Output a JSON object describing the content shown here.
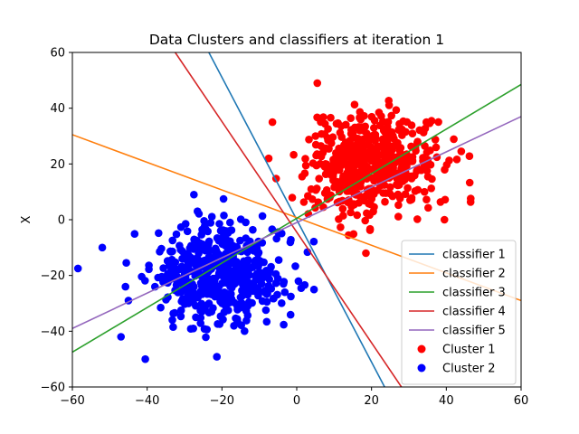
{
  "chart_data": {
    "type": "scatter",
    "title": "Data Clusters and classifiers at iteration 1",
    "xlabel": "",
    "ylabel": "X",
    "xlim": [
      -60,
      60
    ],
    "ylim": [
      -60,
      60
    ],
    "xticks": [
      -60,
      -40,
      -20,
      0,
      20,
      40,
      60
    ],
    "yticks": [
      -60,
      -40,
      -20,
      0,
      20,
      40,
      60
    ],
    "grid": false,
    "legend_position": "lower-right",
    "lines": [
      {
        "name": "classifier 1",
        "color": "#1f77b4",
        "points": [
          [
            -23.5,
            60
          ],
          [
            23.5,
            -60
          ]
        ]
      },
      {
        "name": "classifier 2",
        "color": "#ff7f0e",
        "points": [
          [
            -60,
            30.5
          ],
          [
            60,
            -29
          ]
        ]
      },
      {
        "name": "classifier 3",
        "color": "#2ca02c",
        "points": [
          [
            -60,
            -47.5
          ],
          [
            60,
            48.5
          ]
        ]
      },
      {
        "name": "classifier 4",
        "color": "#d62728",
        "points": [
          [
            -32.5,
            60
          ],
          [
            28,
            -60
          ]
        ]
      },
      {
        "name": "classifier 5",
        "color": "#9467bd",
        "points": [
          [
            -60,
            -39
          ],
          [
            60,
            37
          ]
        ]
      }
    ],
    "clusters": [
      {
        "name": "Cluster 1",
        "color": "#ff0000",
        "n": 500,
        "center": [
          20,
          20
        ],
        "spread": [
          8.5,
          9
        ]
      },
      {
        "name": "Cluster 2",
        "color": "#0000ff",
        "n": 500,
        "center": [
          -20,
          -20
        ],
        "spread": [
          9,
          9
        ]
      }
    ],
    "notable_points": {
      "Cluster 1": [
        [
          5.5,
          49
        ],
        [
          -6.5,
          35
        ],
        [
          18.5,
          -12
        ],
        [
          -7.5,
          22
        ],
        [
          39.5,
          0
        ],
        [
          44,
          24.5
        ]
      ],
      "Cluster 2": [
        [
          -58.5,
          -17.5
        ],
        [
          -40.5,
          -50
        ],
        [
          -47,
          -42
        ],
        [
          -27.5,
          9
        ],
        [
          -52,
          -10
        ],
        [
          -45,
          -29
        ]
      ]
    }
  }
}
